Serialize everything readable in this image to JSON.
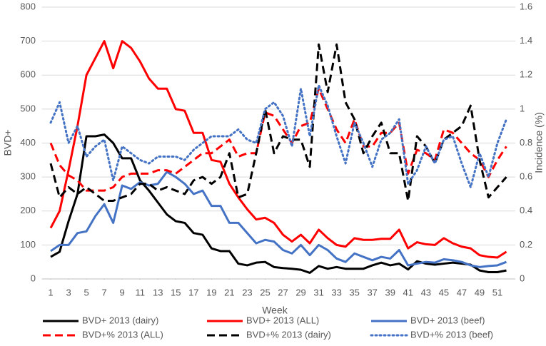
{
  "chart_data": {
    "type": "line",
    "xlabel": "Week",
    "ylabel": "BVD+",
    "y2label": "Incidence (%)",
    "x": [
      1,
      2,
      3,
      4,
      5,
      6,
      7,
      8,
      9,
      10,
      11,
      12,
      13,
      14,
      15,
      16,
      17,
      18,
      19,
      20,
      21,
      22,
      23,
      24,
      25,
      26,
      27,
      28,
      29,
      30,
      31,
      32,
      33,
      34,
      35,
      36,
      37,
      38,
      39,
      40,
      41,
      42,
      43,
      44,
      45,
      46,
      47,
      48,
      49,
      50,
      51,
      52
    ],
    "xlim": [
      0,
      53
    ],
    "xticks": [
      1,
      3,
      5,
      7,
      9,
      11,
      13,
      15,
      17,
      19,
      21,
      23,
      25,
      27,
      29,
      31,
      33,
      35,
      37,
      39,
      41,
      43,
      45,
      47,
      49,
      51
    ],
    "ylim": [
      0,
      800
    ],
    "yticks": [
      0,
      100,
      200,
      300,
      400,
      500,
      600,
      700,
      800
    ],
    "y2lim": [
      0,
      1.6
    ],
    "y2ticks": [
      0,
      0.2,
      0.4,
      0.6,
      0.8,
      1,
      1.2,
      1.4,
      1.6
    ],
    "grid": true,
    "legend": "bottom",
    "series": [
      {
        "name": "BVD+ 2013 (dairy)",
        "color": "#000000",
        "style": "solid",
        "axis": "y",
        "values": [
          65,
          80,
          170,
          250,
          420,
          420,
          425,
          400,
          355,
          355,
          290,
          260,
          225,
          190,
          170,
          165,
          135,
          130,
          90,
          82,
          82,
          45,
          40,
          48,
          50,
          35,
          32,
          30,
          27,
          18,
          38,
          30,
          35,
          30,
          30,
          30,
          40,
          48,
          40,
          45,
          28,
          52,
          45,
          42,
          45,
          48,
          45,
          42,
          25,
          20,
          20,
          25
        ]
      },
      {
        "name": "BVD+ 2013 (ALL)",
        "color": "#ff0000",
        "style": "solid",
        "axis": "y",
        "values": [
          150,
          200,
          320,
          450,
          600,
          650,
          700,
          620,
          700,
          680,
          640,
          590,
          560,
          560,
          500,
          495,
          430,
          430,
          350,
          345,
          280,
          240,
          205,
          175,
          180,
          165,
          130,
          110,
          130,
          105,
          145,
          120,
          100,
          95,
          120,
          115,
          115,
          118,
          118,
          145,
          90,
          108,
          102,
          100,
          120,
          105,
          95,
          90,
          70,
          65,
          63,
          80
        ]
      },
      {
        "name": "BVD+ 2013 (beef)",
        "color": "#4472c4",
        "style": "solid",
        "axis": "y",
        "values": [
          82,
          100,
          100,
          135,
          140,
          185,
          220,
          165,
          275,
          265,
          285,
          275,
          280,
          315,
          300,
          280,
          250,
          260,
          215,
          215,
          165,
          165,
          135,
          105,
          115,
          110,
          85,
          75,
          100,
          70,
          100,
          85,
          60,
          50,
          75,
          65,
          55,
          65,
          60,
          85,
          40,
          45,
          50,
          48,
          58,
          55,
          50,
          40,
          35,
          38,
          40,
          50
        ]
      },
      {
        "name": "BVD+% 2013 (ALL)",
        "color": "#ff0000",
        "style": "dashed",
        "axis": "y2",
        "values": [
          0.8,
          0.67,
          0.61,
          0.58,
          0.52,
          0.52,
          0.52,
          0.54,
          0.6,
          0.62,
          0.62,
          0.62,
          0.64,
          0.64,
          0.62,
          0.66,
          0.7,
          0.74,
          0.74,
          0.78,
          0.82,
          0.72,
          0.74,
          0.74,
          0.98,
          0.96,
          0.88,
          0.8,
          0.9,
          0.92,
          1.12,
          1.0,
          0.88,
          0.8,
          0.94,
          0.78,
          0.78,
          0.86,
          0.86,
          0.92,
          0.62,
          0.76,
          0.74,
          0.7,
          0.88,
          0.86,
          0.8,
          0.74,
          0.7,
          0.6,
          0.7,
          0.78
        ]
      },
      {
        "name": "BVD+% 2013 (dairy)",
        "color": "#000000",
        "style": "dashed",
        "axis": "y2",
        "values": [
          0.68,
          0.48,
          0.54,
          0.5,
          0.54,
          0.5,
          0.46,
          0.46,
          0.48,
          0.5,
          0.56,
          0.56,
          0.52,
          0.54,
          0.52,
          0.5,
          0.58,
          0.6,
          0.56,
          0.6,
          0.74,
          0.48,
          0.5,
          0.74,
          1.0,
          0.74,
          0.84,
          0.82,
          0.82,
          0.66,
          1.38,
          1.1,
          1.38,
          1.04,
          0.94,
          0.74,
          0.84,
          0.92,
          0.74,
          0.74,
          0.46,
          0.84,
          0.78,
          0.68,
          0.82,
          0.86,
          0.9,
          1.02,
          0.7,
          0.48,
          0.54,
          0.6
        ]
      },
      {
        "name": "BVD+% 2013 (beef)",
        "color": "#4472c4",
        "style": "dotted",
        "axis": "y2",
        "values": [
          0.92,
          1.04,
          0.8,
          0.9,
          0.72,
          0.78,
          0.82,
          0.58,
          0.78,
          0.74,
          0.7,
          0.68,
          0.72,
          0.72,
          0.72,
          0.7,
          0.76,
          0.8,
          0.84,
          0.84,
          0.84,
          0.88,
          0.82,
          0.8,
          1.0,
          1.04,
          0.96,
          0.78,
          1.12,
          0.84,
          1.14,
          1.02,
          0.84,
          0.68,
          0.92,
          0.8,
          0.66,
          0.82,
          0.86,
          0.94,
          0.56,
          0.64,
          0.78,
          0.68,
          0.82,
          0.84,
          0.68,
          0.54,
          0.74,
          0.6,
          0.8,
          0.94
        ]
      }
    ]
  }
}
